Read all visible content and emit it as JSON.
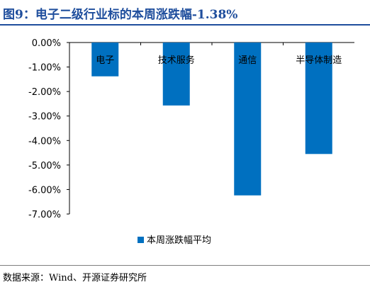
{
  "header": {
    "title": "图9：电子二级行业标的本周涨跌幅-1.38%"
  },
  "footer": {
    "source": "数据来源：Wind、开源证券研究所"
  },
  "colors": {
    "bar": "#0070c0",
    "title": "#1f4e9d"
  },
  "chart_data": {
    "type": "bar",
    "categories": [
      "电子",
      "技术服务",
      "通信",
      "半导体制造"
    ],
    "series": [
      {
        "name": "本周涨跌幅平均",
        "values": [
          -1.38,
          -2.57,
          -6.24,
          -4.55
        ]
      }
    ],
    "ylim": [
      -7.0,
      0.0
    ],
    "yticks": [
      "0.00%",
      "-1.00%",
      "-2.00%",
      "-3.00%",
      "-4.00%",
      "-5.00%",
      "-6.00%",
      "-7.00%"
    ],
    "xlabel": "",
    "ylabel": "",
    "grid": false,
    "legend": "bottom-center"
  }
}
